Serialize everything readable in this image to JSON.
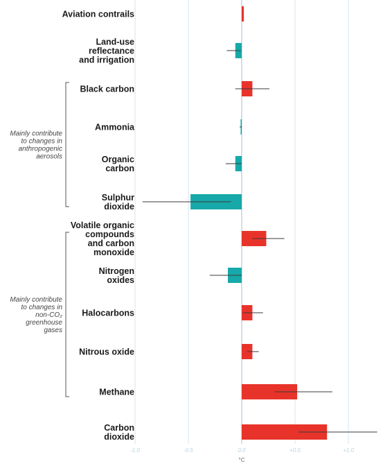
{
  "colors": {
    "warming": "#e8332a",
    "cooling": "#17a9a9",
    "grid": "#d5e4ec",
    "zero_line": "#bcd3e2",
    "error_bar": "#3a3a3a",
    "bracket": "#555555"
  },
  "chart_data": {
    "type": "bar",
    "orientation": "horizontal",
    "title": "",
    "xlabel": "°C",
    "ylabel": "",
    "xlim": [
      -1.0,
      1.25
    ],
    "grid": true,
    "x_ticks": [
      {
        "value": -1.0,
        "label": "-1.0"
      },
      {
        "value": -0.5,
        "label": "-0.5"
      },
      {
        "value": 0,
        "label": "0.0"
      },
      {
        "value": 0.5,
        "label": "+0.5"
      },
      {
        "value": 1.0,
        "label": "+1.0"
      }
    ],
    "categories": [
      "Aviation contrails",
      "Land-use reflectance and irrigation",
      "Black carbon",
      "Ammonia",
      "Organic carbon",
      "Sulphur dioxide",
      "Volatile organic compounds and carbon monoxide",
      "Nitrogen oxides",
      "Halocarbons",
      "Nitrous oxide",
      "Methane",
      "Carbon dioxide"
    ],
    "category_lines": [
      [
        "Aviation contrails"
      ],
      [
        "Land-use",
        "reflectance",
        "and irrigation"
      ],
      [
        "Black carbon"
      ],
      [
        "Ammonia"
      ],
      [
        "Organic",
        "carbon"
      ],
      [
        "Sulphur",
        "dioxide"
      ],
      [
        "Volatile organic",
        "compounds",
        "and carbon",
        "monoxide"
      ],
      [
        "Nitrogen",
        "oxides"
      ],
      [
        "Halocarbons"
      ],
      [
        "Nitrous oxide"
      ],
      [
        "Methane"
      ],
      [
        "Carbon",
        "dioxide"
      ]
    ],
    "values": [
      0.02,
      -0.06,
      0.1,
      -0.01,
      -0.06,
      -0.48,
      0.23,
      -0.13,
      0.1,
      0.1,
      0.52,
      0.8
    ],
    "error_low": [
      0.02,
      -0.14,
      -0.06,
      -0.02,
      -0.15,
      -0.93,
      0.1,
      -0.3,
      0.01,
      0.05,
      0.31,
      0.53
    ],
    "error_high": [
      0.02,
      -0.01,
      0.26,
      0.0,
      0.0,
      -0.1,
      0.4,
      0.0,
      0.2,
      0.16,
      0.85,
      1.27
    ],
    "groups": [
      {
        "label_lines": [
          "Mainly contribute",
          "to changes in",
          "anthropogenic",
          "aerosols"
        ],
        "first": 2,
        "last": 5
      },
      {
        "label_lines": [
          "Mainly contribute",
          "to changes in",
          "non-CO₂",
          "greenhouse",
          "gases"
        ],
        "first": 6,
        "last": 10
      }
    ]
  }
}
